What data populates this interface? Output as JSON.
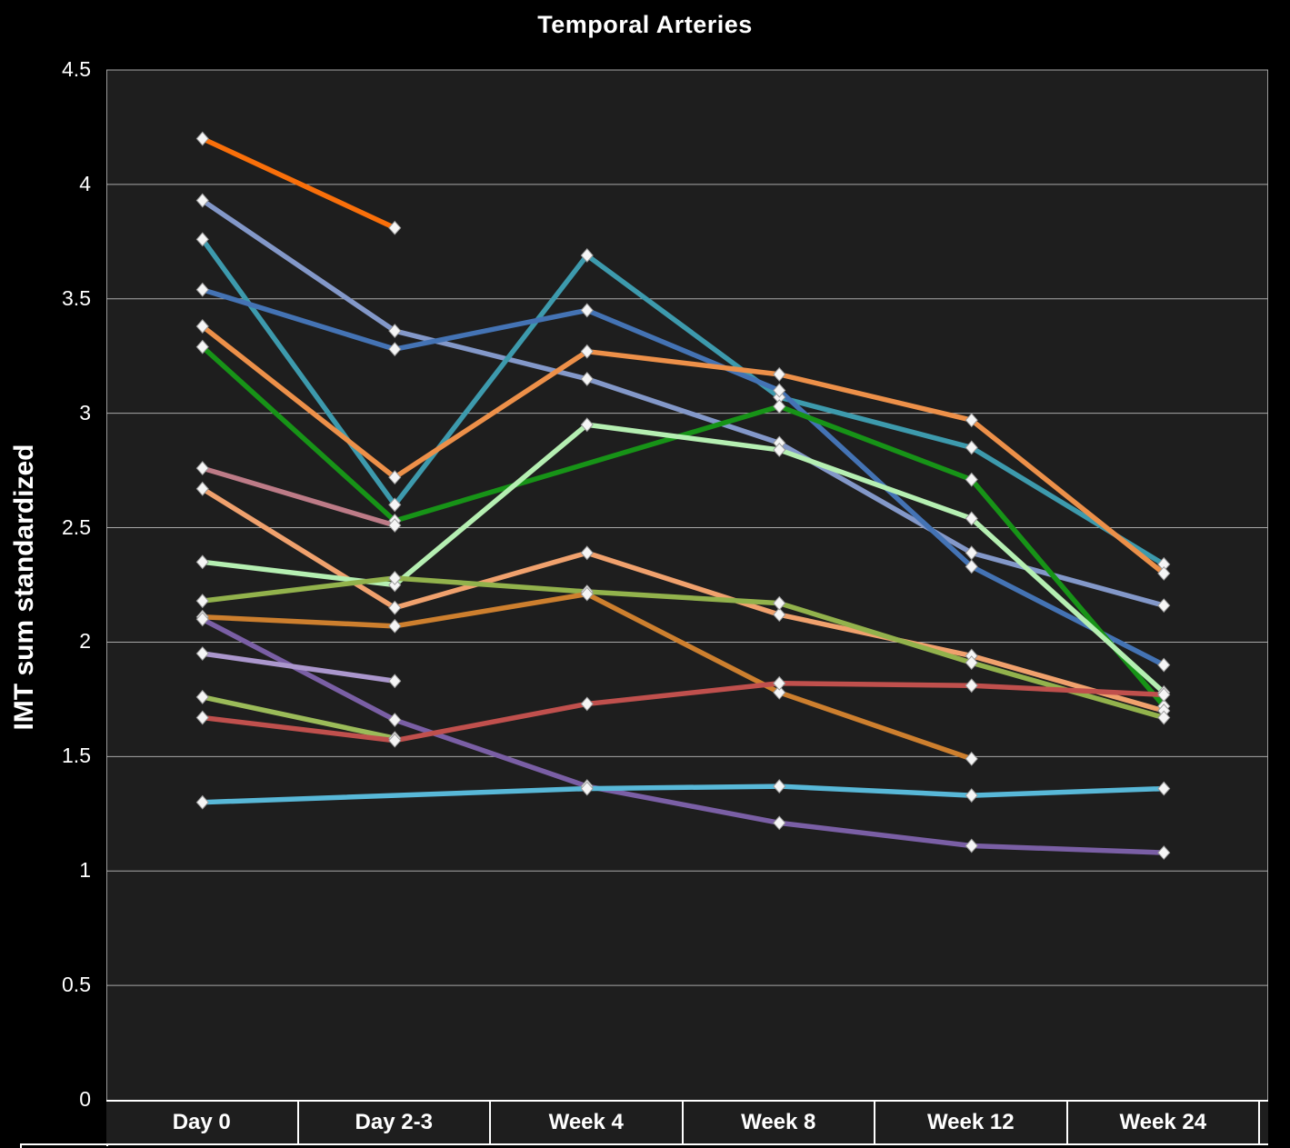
{
  "title": "Temporal Arteries",
  "y_axis": {
    "title": "IMT sum standardized",
    "tick_labels": [
      "4.5",
      "4",
      "3.5",
      "3",
      "2.5",
      "2",
      "1.5",
      "1",
      "0.5",
      "0"
    ],
    "min": 0,
    "max": 4.5
  },
  "x_axis": {
    "categories": [
      "Day 0",
      "Day 2-3",
      "Week 4",
      "Week 8",
      "Week 12",
      "Week 24"
    ]
  },
  "colors": {
    "background": "#000000",
    "plot_background": "#1e1e1e",
    "gridline": "#a9a9a9",
    "axis_line": "#ffffff",
    "marker_fill": "#f5f5f5",
    "marker_stroke": "#9c9c9c"
  },
  "chart_data": {
    "type": "line",
    "title": "Temporal Arteries",
    "xlabel": "",
    "ylabel": "IMT sum standardized",
    "ylim": [
      0,
      4.5
    ],
    "grid": true,
    "legend": "none",
    "marker": "diamond",
    "categories": [
      "Day 0",
      "Day 2-3",
      "Week 4",
      "Week 8",
      "Week 12",
      "Week 24"
    ],
    "series": [
      {
        "name": "bright-orange",
        "color": "#f96f0a",
        "values": [
          4.2,
          3.81,
          null,
          null,
          null,
          null
        ]
      },
      {
        "name": "slate-blue",
        "color": "#8398c9",
        "values": [
          3.93,
          3.36,
          3.15,
          2.87,
          2.39,
          2.16
        ]
      },
      {
        "name": "teal",
        "color": "#3d9aad",
        "values": [
          3.76,
          2.6,
          3.69,
          3.07,
          2.85,
          2.34
        ]
      },
      {
        "name": "medium-blue",
        "color": "#4473b4",
        "values": [
          3.54,
          3.28,
          3.45,
          3.1,
          2.33,
          1.9
        ]
      },
      {
        "name": "orange",
        "color": "#ed9049",
        "values": [
          3.38,
          2.72,
          3.27,
          3.17,
          2.97,
          2.3
        ]
      },
      {
        "name": "dark-green",
        "color": "#179317",
        "values": [
          3.29,
          2.53,
          null,
          3.03,
          2.71,
          1.72
        ]
      },
      {
        "name": "rose",
        "color": "#bd7b87",
        "values": [
          2.76,
          2.51,
          null,
          null,
          null,
          null
        ]
      },
      {
        "name": "salmon",
        "color": "#f0a16d",
        "values": [
          2.67,
          2.15,
          2.39,
          2.12,
          1.94,
          1.7
        ]
      },
      {
        "name": "mint-green",
        "color": "#b5efb2",
        "values": [
          2.35,
          2.25,
          2.95,
          2.84,
          2.54,
          1.78
        ]
      },
      {
        "name": "olive-green",
        "color": "#92b24c",
        "values": [
          2.18,
          2.28,
          2.22,
          2.17,
          1.91,
          1.67
        ]
      },
      {
        "name": "dark-orange",
        "color": "#cd7f2e",
        "values": [
          2.11,
          2.07,
          2.21,
          1.78,
          1.49,
          null
        ]
      },
      {
        "name": "purple",
        "color": "#7a5fa5",
        "values": [
          2.1,
          1.66,
          1.37,
          1.21,
          1.11,
          1.08
        ]
      },
      {
        "name": "lavender",
        "color": "#ab97cd",
        "values": [
          1.95,
          1.83,
          null,
          null,
          null,
          null
        ]
      },
      {
        "name": "yellow-green",
        "color": "#9bbb59",
        "values": [
          1.76,
          1.58,
          null,
          null,
          null,
          null
        ]
      },
      {
        "name": "red",
        "color": "#c0504d",
        "values": [
          1.67,
          1.57,
          1.73,
          1.82,
          1.81,
          1.77
        ]
      },
      {
        "name": "cyan",
        "color": "#58b8d8",
        "values": [
          1.3,
          null,
          1.36,
          1.37,
          1.33,
          1.36
        ]
      }
    ]
  }
}
